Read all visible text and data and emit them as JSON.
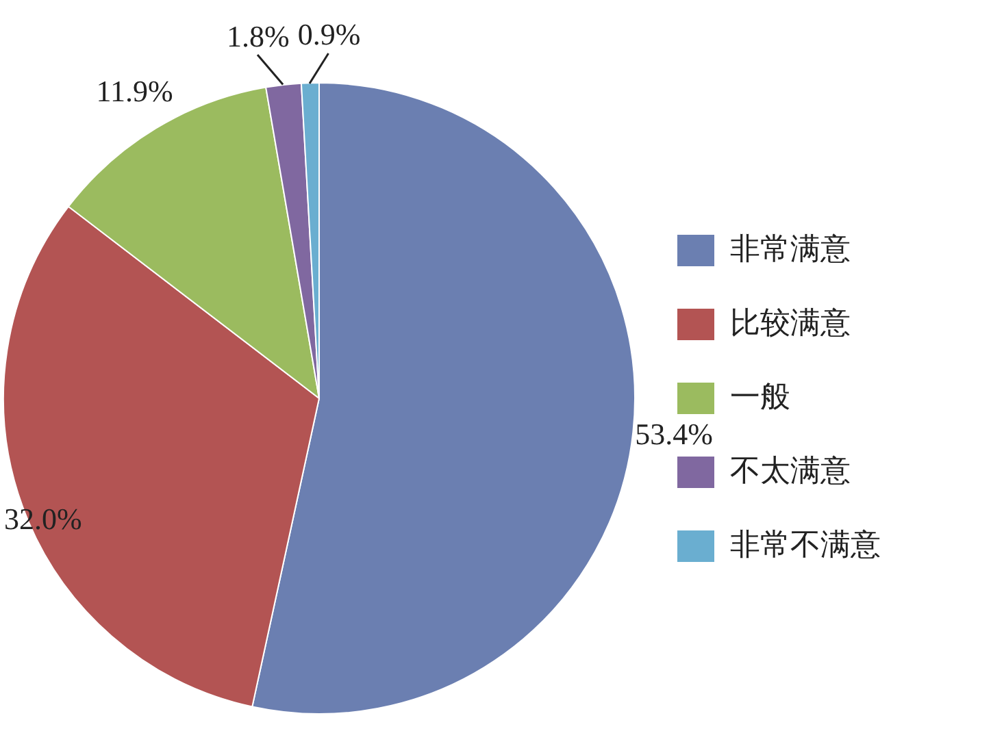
{
  "chart_data": {
    "type": "pie",
    "categories": [
      "非常满意",
      "比较满意",
      "一般",
      "不太满意",
      "非常不满意"
    ],
    "values": [
      53.4,
      32.0,
      11.9,
      1.8,
      0.9
    ],
    "value_labels": [
      "53.4%",
      "32.0%",
      "11.9%",
      "1.8%",
      "0.9%"
    ],
    "colors": [
      "#6b7fb1",
      "#b35453",
      "#9bbb5f",
      "#8068a0",
      "#6aaed0"
    ],
    "legend": "right"
  }
}
